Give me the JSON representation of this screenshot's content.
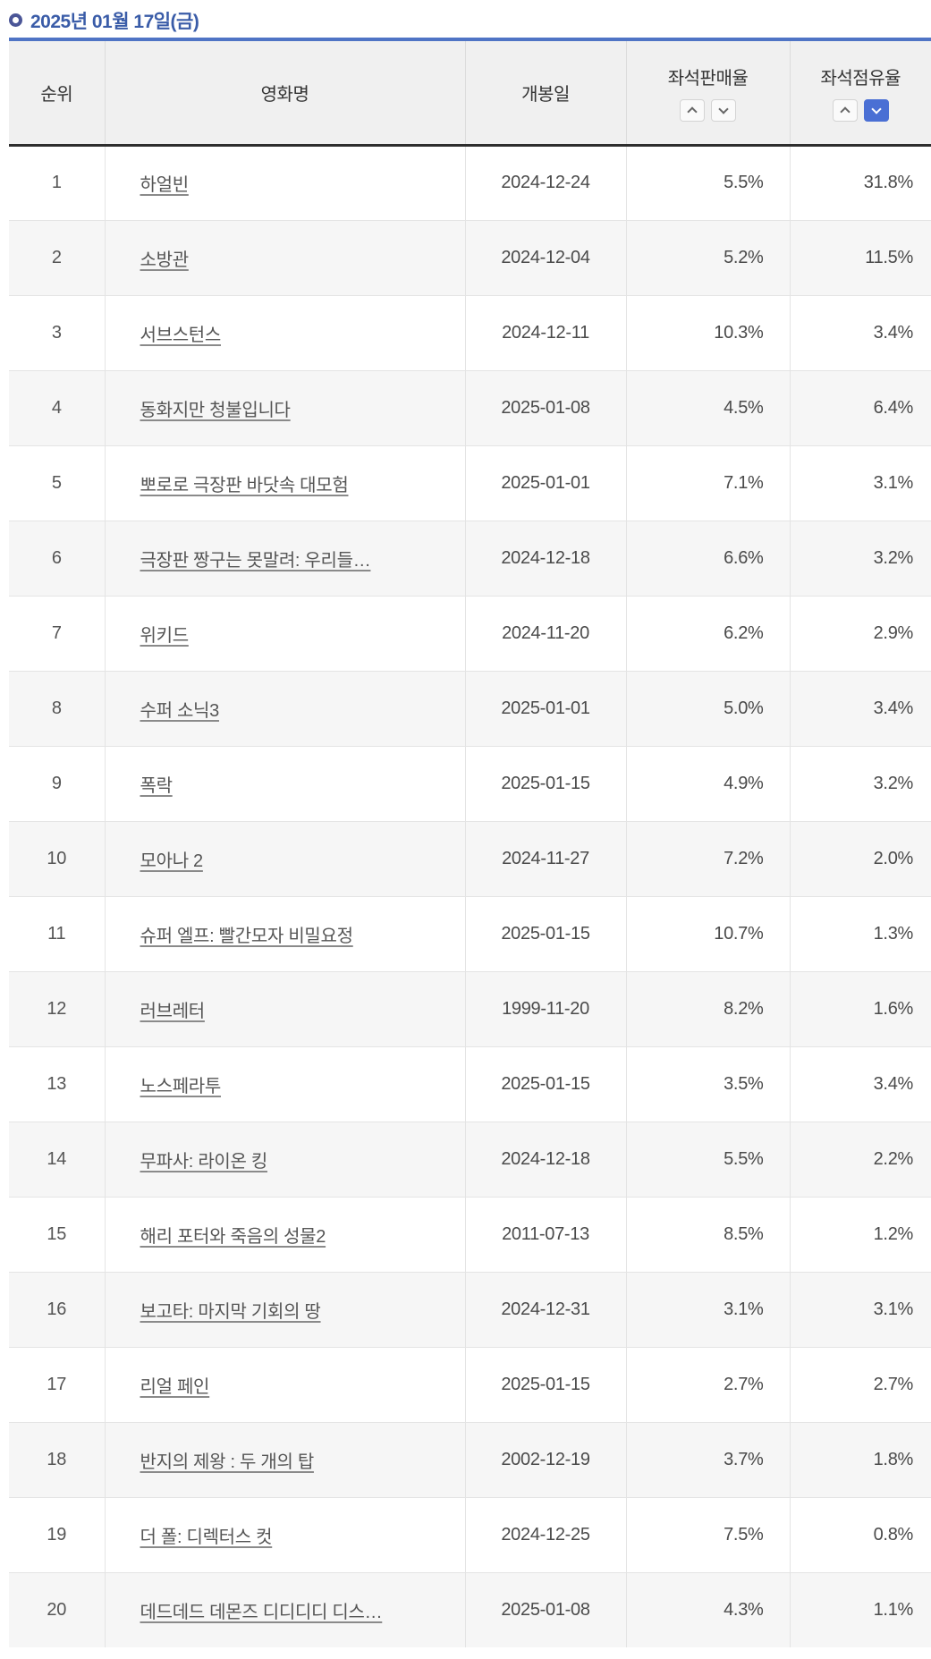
{
  "page": {
    "title": "2025년 01월 17일(금)"
  },
  "table": {
    "columns": {
      "rank": "순위",
      "title": "영화명",
      "release_date": "개봉일",
      "seat_sales_rate": "좌석판매율",
      "seat_occupancy_rate": "좌석점유율"
    },
    "sort": {
      "seat_sales_rate": {
        "asc": false,
        "desc": false
      },
      "seat_occupancy_rate": {
        "asc": false,
        "desc": true
      }
    },
    "rows": [
      {
        "rank": "1",
        "title": "하얼빈",
        "release_date": "2024-12-24",
        "seat_sales_rate": "5.5%",
        "seat_occupancy_rate": "31.8%"
      },
      {
        "rank": "2",
        "title": "소방관",
        "release_date": "2024-12-04",
        "seat_sales_rate": "5.2%",
        "seat_occupancy_rate": "11.5%"
      },
      {
        "rank": "3",
        "title": "서브스턴스",
        "release_date": "2024-12-11",
        "seat_sales_rate": "10.3%",
        "seat_occupancy_rate": "3.4%"
      },
      {
        "rank": "4",
        "title": "동화지만 청불입니다",
        "release_date": "2025-01-08",
        "seat_sales_rate": "4.5%",
        "seat_occupancy_rate": "6.4%"
      },
      {
        "rank": "5",
        "title": "뽀로로 극장판 바닷속 대모험",
        "release_date": "2025-01-01",
        "seat_sales_rate": "7.1%",
        "seat_occupancy_rate": "3.1%"
      },
      {
        "rank": "6",
        "title": "극장판 짱구는 못말려: 우리들…",
        "release_date": "2024-12-18",
        "seat_sales_rate": "6.6%",
        "seat_occupancy_rate": "3.2%"
      },
      {
        "rank": "7",
        "title": "위키드",
        "release_date": "2024-11-20",
        "seat_sales_rate": "6.2%",
        "seat_occupancy_rate": "2.9%"
      },
      {
        "rank": "8",
        "title": "수퍼 소닉3",
        "release_date": "2025-01-01",
        "seat_sales_rate": "5.0%",
        "seat_occupancy_rate": "3.4%"
      },
      {
        "rank": "9",
        "title": "폭락",
        "release_date": "2025-01-15",
        "seat_sales_rate": "4.9%",
        "seat_occupancy_rate": "3.2%"
      },
      {
        "rank": "10",
        "title": "모아나 2",
        "release_date": "2024-11-27",
        "seat_sales_rate": "7.2%",
        "seat_occupancy_rate": "2.0%"
      },
      {
        "rank": "11",
        "title": "슈퍼 엘프: 빨간모자 비밀요정",
        "release_date": "2025-01-15",
        "seat_sales_rate": "10.7%",
        "seat_occupancy_rate": "1.3%"
      },
      {
        "rank": "12",
        "title": "러브레터",
        "release_date": "1999-11-20",
        "seat_sales_rate": "8.2%",
        "seat_occupancy_rate": "1.6%"
      },
      {
        "rank": "13",
        "title": "노스페라투",
        "release_date": "2025-01-15",
        "seat_sales_rate": "3.5%",
        "seat_occupancy_rate": "3.4%"
      },
      {
        "rank": "14",
        "title": "무파사: 라이온 킹",
        "release_date": "2024-12-18",
        "seat_sales_rate": "5.5%",
        "seat_occupancy_rate": "2.2%"
      },
      {
        "rank": "15",
        "title": "해리 포터와 죽음의 성물2",
        "release_date": "2011-07-13",
        "seat_sales_rate": "8.5%",
        "seat_occupancy_rate": "1.2%"
      },
      {
        "rank": "16",
        "title": "보고타: 마지막 기회의 땅",
        "release_date": "2024-12-31",
        "seat_sales_rate": "3.1%",
        "seat_occupancy_rate": "3.1%"
      },
      {
        "rank": "17",
        "title": "리얼 페인",
        "release_date": "2025-01-15",
        "seat_sales_rate": "2.7%",
        "seat_occupancy_rate": "2.7%"
      },
      {
        "rank": "18",
        "title": "반지의 제왕 : 두 개의 탑",
        "release_date": "2002-12-19",
        "seat_sales_rate": "3.7%",
        "seat_occupancy_rate": "1.8%"
      },
      {
        "rank": "19",
        "title": "더 폴: 디렉터스 컷",
        "release_date": "2024-12-25",
        "seat_sales_rate": "7.5%",
        "seat_occupancy_rate": "0.8%"
      },
      {
        "rank": "20",
        "title": "데드데드 데몬즈 디디디디 디스…",
        "release_date": "2025-01-08",
        "seat_sales_rate": "4.3%",
        "seat_occupancy_rate": "1.1%"
      }
    ]
  },
  "colors": {
    "title_blue": "#3a5ca8",
    "ring_blue": "#4b5697",
    "top_border_blue": "#4f74c5",
    "header_bg": "#f0f0f0",
    "header_dark_border": "#2d2d2d",
    "row_alt_bg": "#f6f6f6",
    "sort_active_bg": "#4a6fd4"
  }
}
